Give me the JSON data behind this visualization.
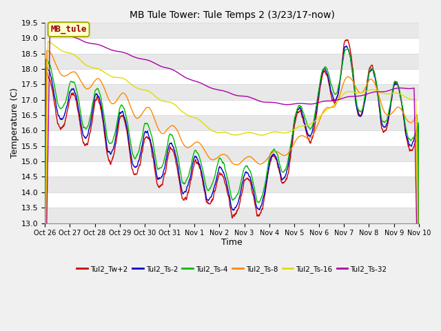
{
  "title": "MB Tule Tower: Tule Temps 2 (3/23/17-now)",
  "xlabel": "Time",
  "ylabel": "Temperature (C)",
  "ylim": [
    13.0,
    19.5
  ],
  "fig_bg_color": "#f0f0f0",
  "plot_bg_color": "#ffffff",
  "grid_color": "#dddddd",
  "annotation_label": "MB_tule",
  "annotation_color": "#990000",
  "annotation_bg": "#ffffcc",
  "annotation_border": "#aaaa00",
  "x_tick_labels": [
    "Oct 26",
    "Oct 27",
    "Oct 28",
    "Oct 29",
    "Oct 30",
    "Oct 31",
    "Nov 1",
    "Nov 2",
    "Nov 3",
    "Nov 4",
    "Nov 5",
    "Nov 6",
    "Nov 7",
    "Nov 8",
    "Nov 9",
    "Nov 10"
  ],
  "series": [
    {
      "label": "Tul2_Tw+2",
      "color": "#cc0000"
    },
    {
      "label": "Tul2_Ts-2",
      "color": "#0000cc"
    },
    {
      "label": "Tul2_Ts-4",
      "color": "#00bb00"
    },
    {
      "label": "Tul2_Ts-8",
      "color": "#ff8800"
    },
    {
      "label": "Tul2_Ts-16",
      "color": "#dddd00"
    },
    {
      "label": "Tul2_Ts-32",
      "color": "#aa00aa"
    }
  ]
}
